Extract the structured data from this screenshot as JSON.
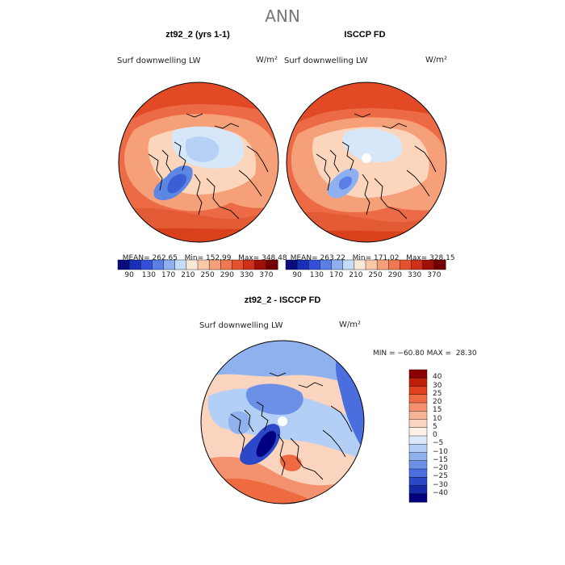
{
  "title": "ANN",
  "panels": [
    {
      "title": "zt92_2 (yrs 1-1)",
      "variable": "Surf downwelling LW",
      "units": "W/m²",
      "stats": {
        "mean_label": "MEAN=",
        "mean": "262.65",
        "min_label": "Min=",
        "min": "152.99",
        "max_label": "Max=",
        "max": "348.48"
      }
    },
    {
      "title": "ISCCP FD",
      "variable": "Surf downwelling LW",
      "units": "W/m²",
      "stats": {
        "mean_label": "MEAN=",
        "mean": "263.22",
        "min_label": "Min=",
        "min": "171.02",
        "max_label": "Max=",
        "max": "328.15"
      }
    }
  ],
  "shared_colorbar": {
    "ticks": [
      "90",
      "130",
      "170",
      "210",
      "250",
      "290",
      "330",
      "370"
    ],
    "colors": [
      "#0a0a80",
      "#1a2fb8",
      "#3550d8",
      "#5a7fe6",
      "#8fb0f0",
      "#c5dcf8",
      "#fbe6d8",
      "#f8c8a8",
      "#f5a078",
      "#f07850",
      "#e55030",
      "#d03018",
      "#a01008",
      "#700000"
    ]
  },
  "diff_panel": {
    "title": "zt92_2 - ISCCP FD",
    "variable": "Surf downwelling LW",
    "units": "W/m²",
    "stats_text": "MIN = −60.80 MAX =  28.30",
    "colorbar_labels": [
      "40",
      "30",
      "25",
      "20",
      "15",
      "10",
      "5",
      "0",
      "−5",
      "−10",
      "−15",
      "−20",
      "−25",
      "−30",
      "−40"
    ],
    "colorbar_colors": [
      "#8b0000",
      "#c0200a",
      "#e04020",
      "#ee6a40",
      "#f49270",
      "#f7b496",
      "#fad4bf",
      "#fdf0e6",
      "#dce9fa",
      "#b4cff5",
      "#8fb2ee",
      "#6b90e6",
      "#4a6ede",
      "#2a48c8",
      "#1428a8",
      "#000080"
    ]
  }
}
